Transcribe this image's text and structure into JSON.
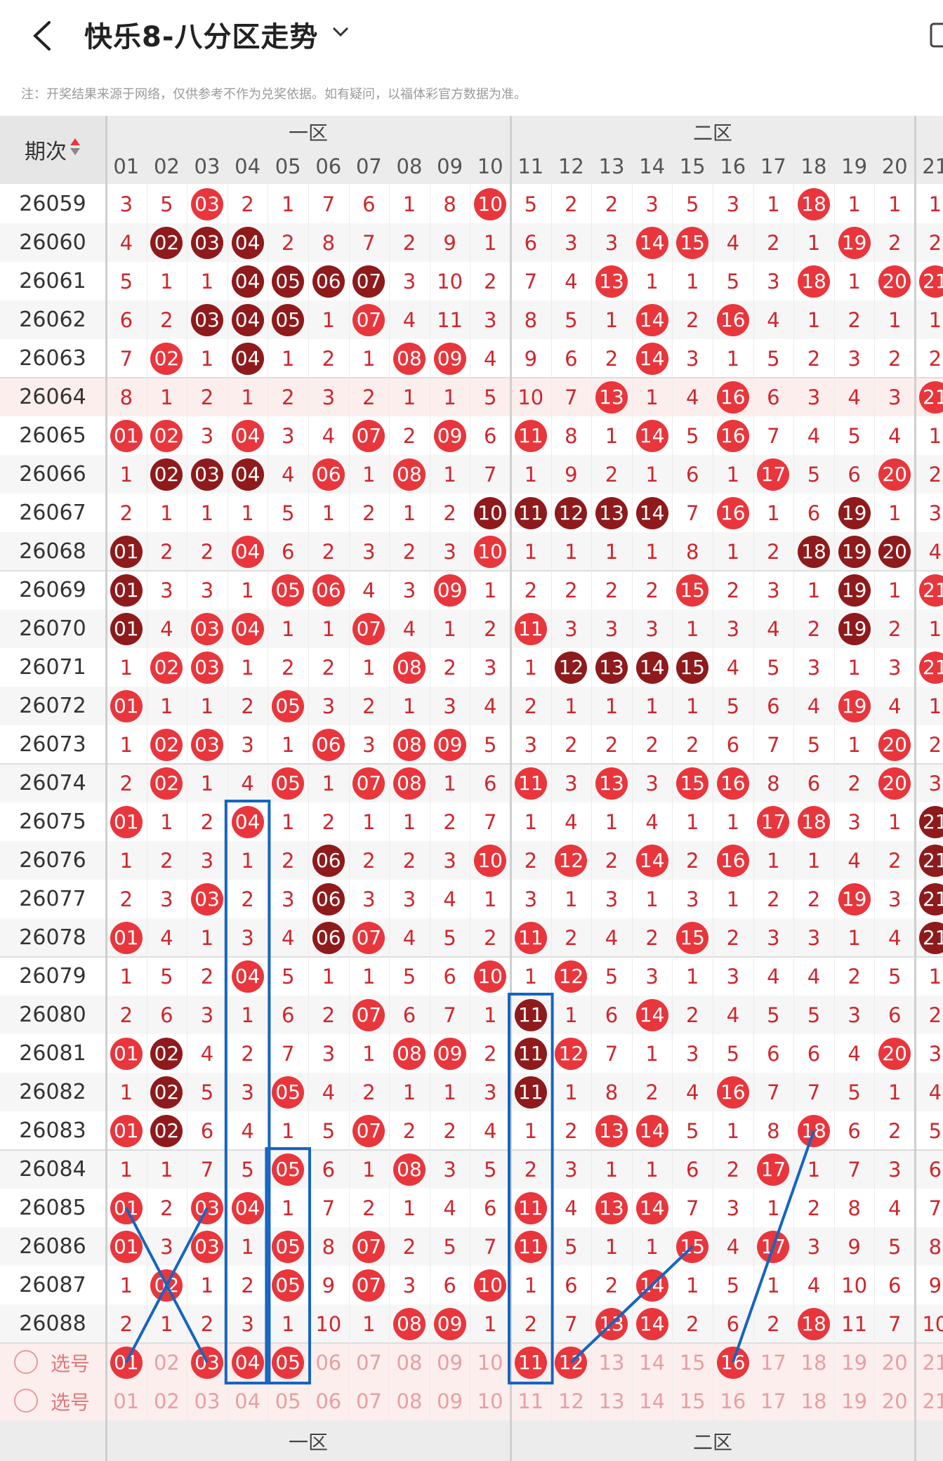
{
  "header": {
    "title": "快乐8-八分区走势"
  },
  "note": "注：开奖结果来源于网络，仅供参考不作为兑奖依据。如有疑问，以福体彩官方数据为准。",
  "table": {
    "period_header": "期次",
    "zones": [
      "一区",
      "二区"
    ],
    "columns": [
      "01",
      "02",
      "03",
      "04",
      "05",
      "06",
      "07",
      "08",
      "09",
      "10",
      "11",
      "12",
      "13",
      "14",
      "15",
      "16",
      "17",
      "18",
      "19",
      "20",
      "21"
    ],
    "rows": [
      {
        "period": "26059",
        "cells": [
          "3",
          "5",
          "03d",
          "2",
          "1",
          "7",
          "6",
          "1",
          "8",
          "10",
          "5",
          "2",
          "2",
          "3",
          "5",
          "3",
          "1",
          "18",
          "1",
          "1",
          "1"
        ]
      },
      {
        "period": "26060",
        "cells": [
          "4",
          "02D",
          "03D",
          "04D",
          "2",
          "8",
          "7",
          "2",
          "9",
          "1",
          "6",
          "3",
          "3",
          "14",
          "15",
          "4",
          "2",
          "1",
          "19",
          "2",
          "2"
        ]
      },
      {
        "period": "26061",
        "cells": [
          "5",
          "1",
          "1",
          "04D",
          "05D",
          "06D",
          "07D",
          "3",
          "10",
          "2",
          "7",
          "4",
          "13",
          "1",
          "1",
          "5",
          "3",
          "18",
          "1",
          "20",
          "21"
        ]
      },
      {
        "period": "26062",
        "cells": [
          "6",
          "2",
          "03D",
          "04D",
          "05D",
          "1",
          "07",
          "4",
          "11",
          "3",
          "8",
          "5",
          "1",
          "14",
          "2",
          "16",
          "4",
          "1",
          "2",
          "1",
          "1"
        ]
      },
      {
        "period": "26063",
        "cells": [
          "7",
          "02",
          "1",
          "04D",
          "1",
          "2",
          "1",
          "08",
          "09",
          "4",
          "9",
          "6",
          "2",
          "14",
          "3",
          "1",
          "5",
          "2",
          "3",
          "2",
          "2"
        ]
      },
      {
        "period": "26064",
        "cells": [
          "8",
          "1",
          "2",
          "1",
          "2",
          "3",
          "2",
          "1",
          "1",
          "5",
          "10",
          "7",
          "13",
          "1",
          "4",
          "16",
          "6",
          "3",
          "4",
          "3",
          "21"
        ]
      },
      {
        "period": "26065",
        "cells": [
          "01",
          "02",
          "3",
          "04",
          "3",
          "4",
          "07",
          "2",
          "09",
          "6",
          "11",
          "8",
          "1",
          "14",
          "5",
          "16",
          "7",
          "4",
          "5",
          "4",
          "1"
        ]
      },
      {
        "period": "26066",
        "cells": [
          "1",
          "02D",
          "03D",
          "04D",
          "4",
          "06",
          "1",
          "08",
          "1",
          "7",
          "1",
          "9",
          "2",
          "1",
          "6",
          "1",
          "17",
          "5",
          "6",
          "20",
          "2"
        ]
      },
      {
        "period": "26067",
        "cells": [
          "2",
          "1",
          "1",
          "1",
          "5",
          "1",
          "2",
          "1",
          "2",
          "10D",
          "11D",
          "12D",
          "13D",
          "14D",
          "7",
          "16",
          "1",
          "6",
          "19D",
          "1",
          "3"
        ]
      },
      {
        "period": "26068",
        "cells": [
          "01D",
          "2",
          "2",
          "04",
          "6",
          "2",
          "3",
          "2",
          "3",
          "10",
          "1",
          "1",
          "1",
          "1",
          "8",
          "1",
          "2",
          "18D",
          "19D",
          "20D",
          "4"
        ]
      },
      {
        "period": "26069",
        "cells": [
          "01D",
          "3",
          "3",
          "1",
          "05",
          "06",
          "4",
          "3",
          "09",
          "1",
          "2",
          "2",
          "2",
          "2",
          "15",
          "2",
          "3",
          "1",
          "19D",
          "1",
          "21"
        ]
      },
      {
        "period": "26070",
        "cells": [
          "01D",
          "4",
          "03",
          "04",
          "1",
          "1",
          "07",
          "4",
          "1",
          "2",
          "11",
          "3",
          "3",
          "3",
          "1",
          "3",
          "4",
          "2",
          "19D",
          "2",
          "1"
        ]
      },
      {
        "period": "26071",
        "cells": [
          "1",
          "02",
          "03",
          "1",
          "2",
          "2",
          "1",
          "08",
          "2",
          "3",
          "1",
          "12D",
          "13D",
          "14D",
          "15D",
          "4",
          "5",
          "3",
          "1",
          "3",
          "21"
        ]
      },
      {
        "period": "26072",
        "cells": [
          "01",
          "1",
          "1",
          "2",
          "05",
          "3",
          "2",
          "1",
          "3",
          "4",
          "2",
          "1",
          "1",
          "1",
          "1",
          "5",
          "6",
          "4",
          "19",
          "4",
          "1"
        ]
      },
      {
        "period": "26073",
        "cells": [
          "1",
          "02",
          "03",
          "3",
          "1",
          "06",
          "3",
          "08",
          "09",
          "5",
          "3",
          "2",
          "2",
          "2",
          "2",
          "6",
          "7",
          "5",
          "1",
          "20",
          "2"
        ]
      },
      {
        "period": "26074",
        "cells": [
          "2",
          "02",
          "1",
          "4",
          "05",
          "1",
          "07",
          "08",
          "1",
          "6",
          "11",
          "3",
          "13",
          "3",
          "15",
          "16",
          "8",
          "6",
          "2",
          "20",
          "3"
        ]
      },
      {
        "period": "26075",
        "cells": [
          "01",
          "1",
          "2",
          "04",
          "1",
          "2",
          "1",
          "1",
          "2",
          "7",
          "1",
          "4",
          "1",
          "4",
          "1",
          "1",
          "17",
          "18",
          "3",
          "1",
          "21D"
        ]
      },
      {
        "period": "26076",
        "cells": [
          "1",
          "2",
          "3",
          "1",
          "2",
          "06D",
          "2",
          "2",
          "3",
          "10",
          "2",
          "12",
          "2",
          "14",
          "2",
          "16",
          "1",
          "1",
          "4",
          "2",
          "21D"
        ]
      },
      {
        "period": "26077",
        "cells": [
          "2",
          "3",
          "03",
          "2",
          "3",
          "06D",
          "3",
          "3",
          "4",
          "1",
          "3",
          "1",
          "3",
          "1",
          "3",
          "1",
          "2",
          "2",
          "19",
          "3",
          "21D"
        ]
      },
      {
        "period": "26078",
        "cells": [
          "01",
          "4",
          "1",
          "3",
          "4",
          "06D",
          "07",
          "4",
          "5",
          "2",
          "11",
          "2",
          "4",
          "2",
          "15",
          "2",
          "3",
          "3",
          "1",
          "4",
          "21D"
        ]
      },
      {
        "period": "26079",
        "cells": [
          "1",
          "5",
          "2",
          "04",
          "5",
          "1",
          "1",
          "5",
          "6",
          "10",
          "1",
          "12",
          "5",
          "3",
          "1",
          "3",
          "4",
          "4",
          "2",
          "5",
          "1"
        ]
      },
      {
        "period": "26080",
        "cells": [
          "2",
          "6",
          "3",
          "1",
          "6",
          "2",
          "07",
          "6",
          "7",
          "1",
          "11D",
          "1",
          "6",
          "14",
          "2",
          "4",
          "5",
          "5",
          "3",
          "6",
          "2"
        ]
      },
      {
        "period": "26081",
        "cells": [
          "01",
          "02D",
          "4",
          "2",
          "7",
          "3",
          "1",
          "08",
          "09",
          "2",
          "11D",
          "12",
          "7",
          "1",
          "3",
          "5",
          "6",
          "6",
          "4",
          "20",
          "3"
        ]
      },
      {
        "period": "26082",
        "cells": [
          "1",
          "02D",
          "5",
          "3",
          "05",
          "4",
          "2",
          "1",
          "1",
          "3",
          "11D",
          "1",
          "8",
          "2",
          "4",
          "16",
          "7",
          "7",
          "5",
          "1",
          "4"
        ]
      },
      {
        "period": "26083",
        "cells": [
          "01",
          "02D",
          "6",
          "4",
          "1",
          "5",
          "07",
          "2",
          "2",
          "4",
          "1",
          "2",
          "13",
          "14",
          "5",
          "1",
          "8",
          "18",
          "6",
          "2",
          "5"
        ]
      },
      {
        "period": "26084",
        "cells": [
          "1",
          "1",
          "7",
          "5",
          "05",
          "6",
          "1",
          "08",
          "3",
          "5",
          "2",
          "3",
          "1",
          "1",
          "6",
          "2",
          "17",
          "1",
          "7",
          "3",
          "6"
        ]
      },
      {
        "period": "26085",
        "cells": [
          "01",
          "2",
          "03",
          "04",
          "1",
          "7",
          "2",
          "1",
          "4",
          "6",
          "11",
          "4",
          "13",
          "14",
          "7",
          "3",
          "1",
          "2",
          "8",
          "4",
          "7"
        ]
      },
      {
        "period": "26086",
        "cells": [
          "01",
          "3",
          "03",
          "1",
          "05",
          "8",
          "07",
          "2",
          "5",
          "7",
          "11",
          "5",
          "1",
          "1",
          "15",
          "4",
          "17",
          "3",
          "9",
          "5",
          "8"
        ]
      },
      {
        "period": "26087",
        "cells": [
          "1",
          "02",
          "1",
          "2",
          "05",
          "9",
          "07",
          "3",
          "6",
          "10",
          "1",
          "6",
          "2",
          "14",
          "1",
          "5",
          "1",
          "4",
          "10",
          "6",
          "9"
        ]
      },
      {
        "period": "26088",
        "cells": [
          "2",
          "1",
          "2",
          "3",
          "1",
          "10",
          "1",
          "08",
          "09",
          "1",
          "2",
          "7",
          "13",
          "14",
          "2",
          "6",
          "2",
          "18",
          "11",
          "7",
          "10"
        ]
      }
    ],
    "select_rows": [
      {
        "label": "选号",
        "cells": [
          "01",
          "02",
          "03",
          "04",
          "05",
          "06",
          "07",
          "08",
          "09",
          "10",
          "11",
          "12",
          "13",
          "14",
          "15",
          "16",
          "17",
          "18",
          "19",
          "20",
          "21"
        ],
        "picked": [
          "01",
          "03",
          "04",
          "05",
          "11",
          "12",
          "16"
        ]
      },
      {
        "label": "选号",
        "cells": [
          "01",
          "02",
          "03",
          "04",
          "05",
          "06",
          "07",
          "08",
          "09",
          "10",
          "11",
          "12",
          "13",
          "14",
          "15",
          "16",
          "17",
          "18",
          "19",
          "20",
          "21"
        ],
        "picked": []
      }
    ]
  },
  "colors": {
    "ball_red": "#e8363c",
    "ball_dark": "#8e1a1c",
    "number_red": "#d0262c",
    "annotation_blue": "#1565c0",
    "zebra": "#f6f6f6",
    "highlight_row": "#fdeeee"
  }
}
